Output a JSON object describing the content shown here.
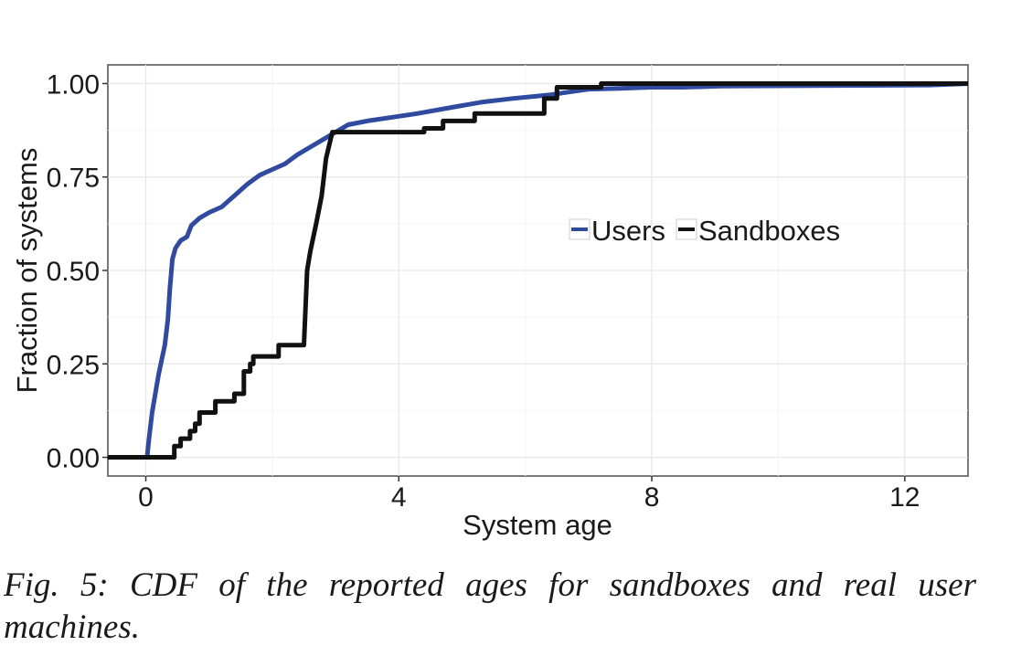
{
  "caption": "Fig. 5: CDF of the reported ages for sandboxes and real user machines.",
  "chart_data": {
    "type": "line",
    "xlabel": "System age",
    "ylabel": "Fraction of systems",
    "xlim": [
      -0.6,
      13
    ],
    "ylim": [
      -0.05,
      1.05
    ],
    "x_ticks": [
      0,
      4,
      8,
      12
    ],
    "x_tick_labels": [
      "0",
      "4",
      "8",
      "12"
    ],
    "y_ticks": [
      0,
      0.25,
      0.5,
      0.75,
      1.0
    ],
    "y_tick_labels": [
      "0.00",
      "0.25",
      "0.50",
      "0.75",
      "1.00"
    ],
    "grid": true,
    "legend_position": "center-right",
    "series": [
      {
        "name": "Users",
        "color": "#2f4a9e",
        "points": [
          [
            -0.6,
            0
          ],
          [
            0.02,
            0
          ],
          [
            0.05,
            0.05
          ],
          [
            0.1,
            0.12
          ],
          [
            0.15,
            0.17
          ],
          [
            0.2,
            0.22
          ],
          [
            0.25,
            0.26
          ],
          [
            0.3,
            0.3
          ],
          [
            0.35,
            0.37
          ],
          [
            0.38,
            0.45
          ],
          [
            0.42,
            0.53
          ],
          [
            0.47,
            0.56
          ],
          [
            0.55,
            0.58
          ],
          [
            0.65,
            0.59
          ],
          [
            0.72,
            0.62
          ],
          [
            0.85,
            0.64
          ],
          [
            1.0,
            0.655
          ],
          [
            1.2,
            0.67
          ],
          [
            1.4,
            0.7
          ],
          [
            1.6,
            0.73
          ],
          [
            1.8,
            0.755
          ],
          [
            2.0,
            0.77
          ],
          [
            2.2,
            0.785
          ],
          [
            2.4,
            0.81
          ],
          [
            2.6,
            0.83
          ],
          [
            2.8,
            0.85
          ],
          [
            3.0,
            0.87
          ],
          [
            3.2,
            0.89
          ],
          [
            3.5,
            0.9
          ],
          [
            3.9,
            0.91
          ],
          [
            4.3,
            0.92
          ],
          [
            4.8,
            0.935
          ],
          [
            5.3,
            0.95
          ],
          [
            5.8,
            0.96
          ],
          [
            6.4,
            0.97
          ],
          [
            7.0,
            0.985
          ],
          [
            7.5,
            0.987
          ],
          [
            8.0,
            0.99
          ],
          [
            8.5,
            0.99
          ],
          [
            9.1,
            0.993
          ],
          [
            12.4,
            0.996
          ],
          [
            13.0,
            1.0
          ]
        ]
      },
      {
        "name": "Sandboxes",
        "color": "#111111",
        "points": [
          [
            -0.6,
            0
          ],
          [
            0.02,
            0
          ],
          [
            0.05,
            0
          ],
          [
            0.45,
            0
          ],
          [
            0.45,
            0.03
          ],
          [
            0.55,
            0.03
          ],
          [
            0.55,
            0.05
          ],
          [
            0.7,
            0.05
          ],
          [
            0.7,
            0.07
          ],
          [
            0.78,
            0.07
          ],
          [
            0.78,
            0.09
          ],
          [
            0.85,
            0.09
          ],
          [
            0.85,
            0.12
          ],
          [
            1.1,
            0.12
          ],
          [
            1.1,
            0.15
          ],
          [
            1.4,
            0.15
          ],
          [
            1.4,
            0.17
          ],
          [
            1.55,
            0.17
          ],
          [
            1.55,
            0.23
          ],
          [
            1.65,
            0.23
          ],
          [
            1.65,
            0.25
          ],
          [
            1.7,
            0.25
          ],
          [
            1.7,
            0.27
          ],
          [
            2.1,
            0.27
          ],
          [
            2.1,
            0.3
          ],
          [
            2.5,
            0.3
          ],
          [
            2.55,
            0.5
          ],
          [
            2.6,
            0.55
          ],
          [
            2.7,
            0.63
          ],
          [
            2.78,
            0.7
          ],
          [
            2.85,
            0.8
          ],
          [
            2.95,
            0.87
          ],
          [
            3.6,
            0.87
          ],
          [
            4.0,
            0.87
          ],
          [
            4.4,
            0.87
          ],
          [
            4.4,
            0.88
          ],
          [
            4.7,
            0.88
          ],
          [
            4.7,
            0.9
          ],
          [
            5.2,
            0.9
          ],
          [
            5.2,
            0.92
          ],
          [
            6.3,
            0.92
          ],
          [
            6.3,
            0.96
          ],
          [
            6.5,
            0.96
          ],
          [
            6.5,
            0.99
          ],
          [
            7.2,
            0.99
          ],
          [
            7.2,
            1.0
          ],
          [
            13.0,
            1.0
          ]
        ]
      }
    ]
  }
}
